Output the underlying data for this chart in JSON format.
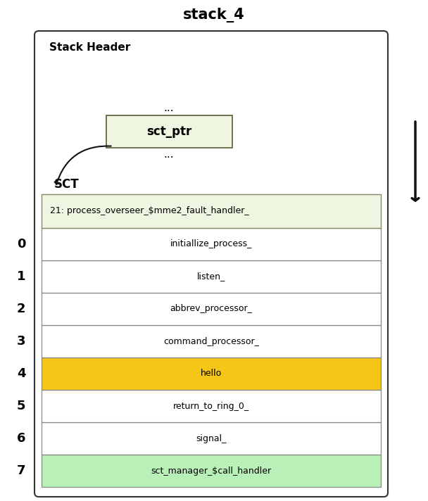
{
  "title": "stack_4",
  "title_fontsize": 15,
  "title_fontweight": "bold",
  "background_color": "#ffffff",
  "outer_box_color": "#ffffff",
  "outer_box_edge": "#333333",
  "stack_header_label": "Stack Header",
  "sct_ptr_label": "sct_ptr",
  "sct_ptr_bg": "#eef5e0",
  "sct_ptr_edge": "#666644",
  "sct_label": "SCT",
  "sct_row_label": "21: process_overseer_$mme2_fault_handler_",
  "sct_row_bg": "#eef5e0",
  "sct_row_edge": "#888866",
  "dots": "...",
  "rows": [
    {
      "index": 0,
      "label": "initiallize_process_",
      "bg": "#ffffff"
    },
    {
      "index": 1,
      "label": "listen_",
      "bg": "#ffffff"
    },
    {
      "index": 2,
      "label": "abbrev_processor_",
      "bg": "#ffffff"
    },
    {
      "index": 3,
      "label": "command_processor_",
      "bg": "#ffffff"
    },
    {
      "index": 4,
      "label": "hello",
      "bg": "#f5c518"
    },
    {
      "index": 5,
      "label": "return_to_ring_0_",
      "bg": "#ffffff"
    },
    {
      "index": 6,
      "label": "signal_",
      "bg": "#ffffff"
    },
    {
      "index": 7,
      "label": "sct_manager_$call_handler",
      "bg": "#b8f0b8"
    }
  ],
  "arrow_color": "#111111",
  "fig_width": 6.08,
  "fig_height": 7.12
}
